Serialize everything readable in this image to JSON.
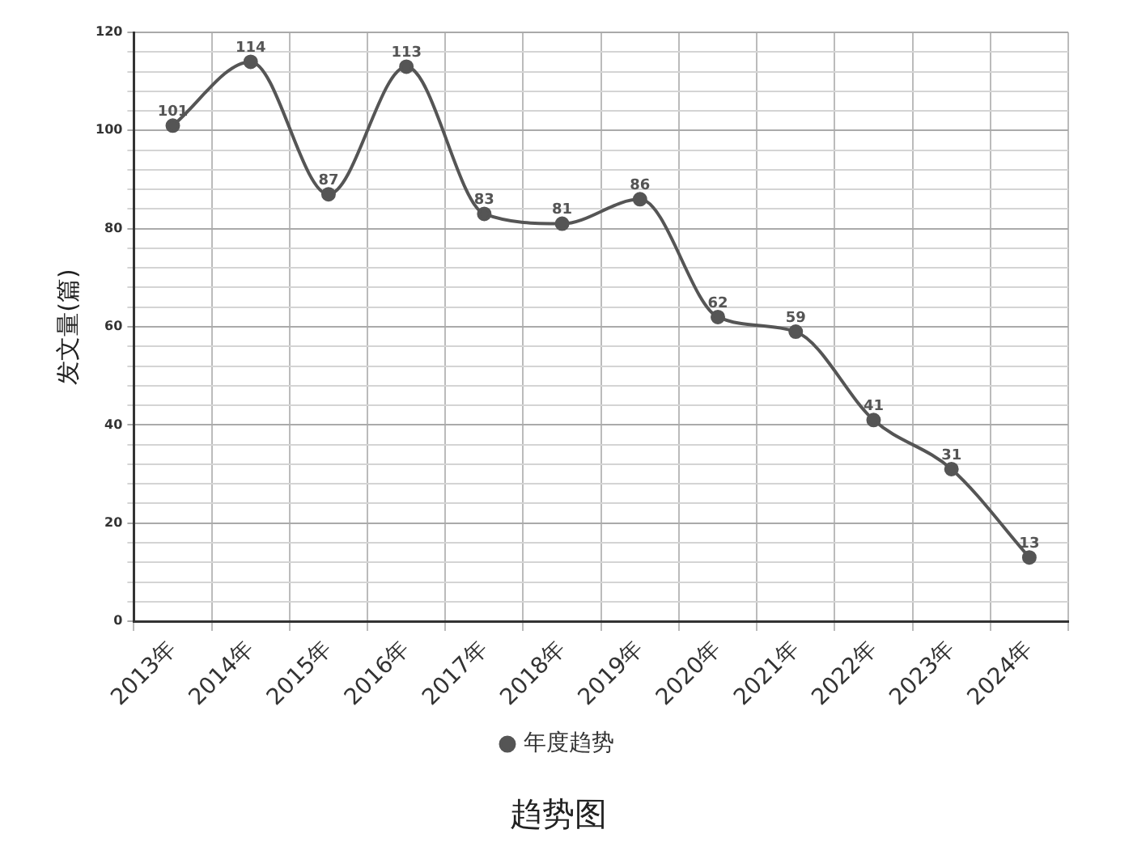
{
  "chart_data": {
    "type": "line",
    "title": "趋势图",
    "ylabel": "发文量(篇)",
    "categories": [
      "2013年",
      "2014年",
      "2015年",
      "2016年",
      "2017年",
      "2018年",
      "2019年",
      "2020年",
      "2021年",
      "2022年",
      "2023年",
      "2024年"
    ],
    "series": [
      {
        "name": "年度趋势",
        "color": "#555555",
        "values": [
          101,
          114,
          87,
          113,
          83,
          81,
          86,
          62,
          59,
          41,
          31,
          13
        ]
      }
    ],
    "ylim": [
      0,
      120
    ],
    "yticks": [
      0,
      {
        "value": 4,
        "label": null
      },
      {
        "value": 8,
        "label": null
      },
      {
        "value": 12,
        "label": null
      },
      {
        "value": 16,
        "label": null
      },
      20,
      {
        "value": 24,
        "label": null
      },
      {
        "value": 28,
        "label": null
      },
      {
        "value": 32,
        "label": null
      },
      {
        "value": 36,
        "label": null
      },
      40,
      {
        "value": 44,
        "label": null
      },
      {
        "value": 48,
        "label": null
      },
      {
        "value": 52,
        "label": null
      },
      {
        "value": 56,
        "label": null
      },
      60,
      {
        "value": 64,
        "label": null
      },
      {
        "value": 68,
        "label": null
      },
      {
        "value": 72,
        "label": null
      },
      {
        "value": 76,
        "label": null
      },
      80,
      {
        "value": 84,
        "label": null
      },
      {
        "value": 88,
        "label": null
      },
      {
        "value": 92,
        "label": null
      },
      {
        "value": 96,
        "label": null
      },
      100,
      {
        "value": 104,
        "label": null
      },
      {
        "value": 108,
        "label": null
      },
      {
        "value": 112,
        "label": null
      },
      {
        "value": 116,
        "label": null
      },
      120
    ],
    "grid": true,
    "legend": "bottom",
    "marker": "circle",
    "line_style": "solid",
    "data_labels": true
  }
}
